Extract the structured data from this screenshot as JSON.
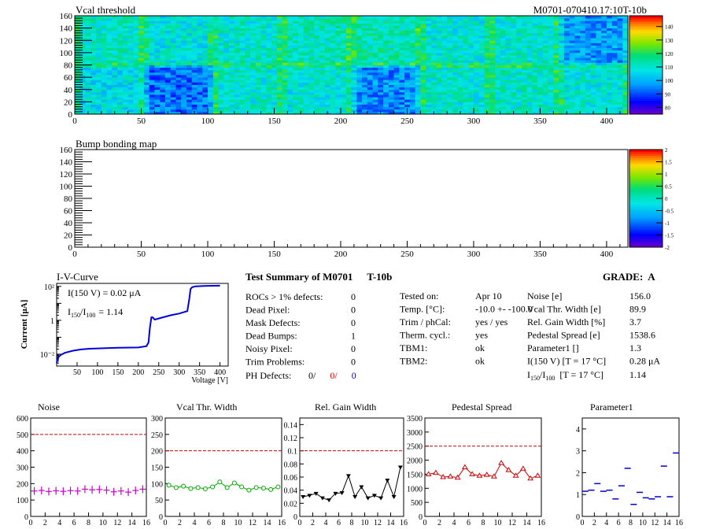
{
  "chart_data": [
    {
      "type": "heatmap",
      "title": "Vcal threshold",
      "module_label": "M0701-070410.17:10T-10b",
      "xlim": [
        0,
        416
      ],
      "ylim": [
        0,
        160
      ],
      "x_ticks": [
        0,
        50,
        100,
        150,
        200,
        250,
        300,
        350,
        400
      ],
      "y_ticks": [
        0,
        20,
        40,
        60,
        80,
        100,
        120,
        140,
        160
      ],
      "z_ticks": [
        80,
        90,
        100,
        110,
        120,
        130,
        140
      ],
      "zlim": [
        75,
        148
      ],
      "roc_mean_bottom": [
        107,
        93,
        110,
        109,
        96,
        110,
        111,
        109
      ],
      "roc_mean_top": [
        111,
        108,
        110,
        112,
        113,
        109,
        110,
        97
      ]
    },
    {
      "type": "heatmap",
      "title": "Bump bonding map",
      "xlim": [
        0,
        416
      ],
      "ylim": [
        0,
        160
      ],
      "x_ticks": [
        0,
        50,
        100,
        150,
        200,
        250,
        300,
        350,
        400
      ],
      "y_ticks": [
        0,
        20,
        40,
        60,
        80,
        100,
        120,
        140,
        160
      ],
      "z_ticks": [
        -2,
        -1.5,
        -1,
        -0.5,
        0,
        0.5,
        1,
        1.5,
        2
      ],
      "zlim": [
        -2,
        2
      ]
    },
    {
      "type": "line",
      "title": "I-V-Curve",
      "xlabel": "Voltage [V]",
      "ylabel": "Current [μA]",
      "y_scale": "log",
      "xlim": [
        0,
        420
      ],
      "ylim": [
        0.002,
        150
      ],
      "x_ticks": [
        50,
        100,
        150,
        200,
        250,
        300,
        350,
        400
      ],
      "y_ticks": [
        0.01,
        1,
        100
      ],
      "y_tick_labels": [
        "10⁻²",
        "1",
        "10²"
      ],
      "annotation_1": "I(150 V) = 0.02 μA",
      "annotation_2_prefix": "I",
      "annotation_2_sub1": "150",
      "annotation_2_mid": "/I",
      "annotation_2_sub2": "100",
      "annotation_2_value": "= 1.14",
      "x": [
        0,
        2,
        5,
        10,
        20,
        40,
        60,
        80,
        100,
        150,
        200,
        220,
        225,
        228,
        232,
        235,
        240,
        260,
        280,
        300,
        320,
        325,
        328,
        332,
        340,
        360,
        400
      ],
      "y": [
        0.003,
        0.005,
        0.007,
        0.009,
        0.012,
        0.016,
        0.019,
        0.021,
        0.022,
        0.024,
        0.025,
        0.03,
        0.05,
        0.3,
        1.5,
        1.5,
        1.1,
        1.5,
        2.0,
        2.5,
        3.5,
        20,
        70,
        90,
        100,
        105,
        110
      ]
    },
    {
      "type": "scatter",
      "title": "Noise",
      "xlim": [
        0,
        16
      ],
      "ylim": [
        0,
        600
      ],
      "x_ticks": [
        0,
        2,
        4,
        6,
        8,
        10,
        12,
        14,
        16
      ],
      "y_ticks": [
        0,
        100,
        200,
        300,
        400,
        500,
        600
      ],
      "limit": 500,
      "marker": "cross",
      "color": "#cc00cc",
      "x": [
        0,
        1,
        2,
        3,
        4,
        5,
        6,
        7,
        8,
        9,
        10,
        11,
        12,
        13,
        14,
        15
      ],
      "values": [
        155,
        158,
        152,
        156,
        153,
        157,
        155,
        166,
        162,
        164,
        160,
        150,
        155,
        148,
        158,
        166
      ]
    },
    {
      "type": "line",
      "title": "Vcal Thr. Width",
      "xlim": [
        0,
        16
      ],
      "ylim": [
        0,
        300
      ],
      "x_ticks": [
        0,
        2,
        4,
        6,
        8,
        10,
        12,
        14,
        16
      ],
      "y_ticks": [
        0,
        50,
        100,
        150,
        200,
        250,
        300
      ],
      "limit": 200,
      "marker": "circle",
      "color": "#00aa00",
      "x": [
        0,
        1,
        2,
        3,
        4,
        5,
        6,
        7,
        8,
        9,
        10,
        11,
        12,
        13,
        14,
        15
      ],
      "values": [
        95,
        88,
        92,
        85,
        88,
        84,
        90,
        105,
        88,
        102,
        90,
        80,
        88,
        86,
        82,
        90
      ]
    },
    {
      "type": "line",
      "title": "Rel. Gain Width",
      "xlim": [
        0,
        16
      ],
      "ylim": [
        0,
        0.15
      ],
      "x_ticks": [
        0,
        2,
        4,
        6,
        8,
        10,
        12,
        14,
        16
      ],
      "y_ticks": [
        0,
        0.02,
        0.04,
        0.06,
        0.08,
        0.1,
        0.12,
        0.14
      ],
      "limit": 0.1,
      "marker": "triangle-down",
      "color": "#000000",
      "x": [
        0,
        1,
        2,
        3,
        4,
        5,
        6,
        7,
        8,
        9,
        10,
        11,
        12,
        13,
        14,
        15
      ],
      "values": [
        0.03,
        0.032,
        0.035,
        0.028,
        0.025,
        0.035,
        0.036,
        0.062,
        0.03,
        0.045,
        0.028,
        0.032,
        0.028,
        0.055,
        0.03,
        0.075
      ]
    },
    {
      "type": "line",
      "title": "Pedestal Spread",
      "xlim": [
        0,
        16
      ],
      "ylim": [
        0,
        3500
      ],
      "x_ticks": [
        0,
        2,
        4,
        6,
        8,
        10,
        12,
        14,
        16
      ],
      "y_ticks": [
        0,
        500,
        1000,
        1500,
        2000,
        2500,
        3000,
        3500
      ],
      "limit": 2500,
      "marker": "triangle-up",
      "color": "#cc0000",
      "x": [
        0,
        1,
        2,
        3,
        4,
        5,
        6,
        7,
        8,
        9,
        10,
        11,
        12,
        13,
        14,
        15
      ],
      "values": [
        1500,
        1550,
        1400,
        1420,
        1380,
        1750,
        1500,
        1450,
        1480,
        1420,
        1900,
        1650,
        1450,
        1700,
        1350,
        1450
      ]
    },
    {
      "type": "scatter",
      "title": "Parameter1",
      "xlim": [
        0,
        16
      ],
      "ylim": [
        0,
        4.5
      ],
      "x_ticks": [
        0,
        2,
        4,
        6,
        8,
        10,
        12,
        14,
        16
      ],
      "y_ticks": [
        0,
        1,
        2,
        3,
        4
      ],
      "marker": "dash",
      "color": "#0000cc",
      "x": [
        0,
        1,
        2,
        3,
        4,
        5,
        6,
        7,
        8,
        9,
        10,
        11,
        12,
        13,
        14,
        15
      ],
      "values": [
        1.15,
        1.2,
        1.5,
        1.15,
        1.2,
        0.8,
        1.4,
        2.2,
        0.55,
        1.1,
        0.85,
        0.8,
        0.9,
        2.3,
        0.9,
        2.9
      ]
    }
  ],
  "summary": {
    "title": "Test Summary of M0701",
    "module_type": "T-10b",
    "grade_label": "GRADE:",
    "grade": "A",
    "left": [
      {
        "label": "ROCs > 1% defects:",
        "value": "0"
      },
      {
        "label": "Dead Pixel:",
        "value": "0"
      },
      {
        "label": "Mask Defects:",
        "value": "0"
      },
      {
        "label": "Dead Bumps:",
        "value": "1"
      },
      {
        "label": "Noisy Pixel:",
        "value": "0"
      },
      {
        "label": "Trim Problems:",
        "value": "0"
      }
    ],
    "ph_label": "PH Defects:",
    "ph_values": [
      {
        "text": "0/",
        "color": "#000000"
      },
      {
        "text": "0/",
        "color": "#dd0000"
      },
      {
        "text": "0",
        "color": "#0000cc"
      }
    ],
    "middle": [
      {
        "label": "Tested on:",
        "value": "Apr 10"
      },
      {
        "label": "Temp. [°C]:",
        "value": "-10.0 +- -100.0"
      },
      {
        "label": "Trim / phCal:",
        "value": "yes / yes"
      },
      {
        "label": "Therm. cycl.:",
        "value": "yes"
      },
      {
        "label": "TBM1:",
        "value": "ok"
      },
      {
        "label": "TBM2:",
        "value": "ok"
      }
    ],
    "right": [
      {
        "label": "Noise [e]",
        "value": "156.0"
      },
      {
        "label": "Vcal Thr. Width [e]",
        "value": "89.9"
      },
      {
        "label": "Rel. Gain Width [%]",
        "value": "3.7"
      },
      {
        "label": "Pedestal Spread [e]",
        "value": "1538.6"
      },
      {
        "label": "Parameter1 []",
        "value": "1.3"
      },
      {
        "label": "I(150 V) [T = 17 °C]",
        "value": "0.28 μA"
      }
    ],
    "ratio_prefix": "I",
    "ratio_sub1": "150",
    "ratio_mid": "/I",
    "ratio_sub2": "100",
    "ratio_rest": "[T = 17 °C]",
    "ratio_value": "1.14"
  }
}
